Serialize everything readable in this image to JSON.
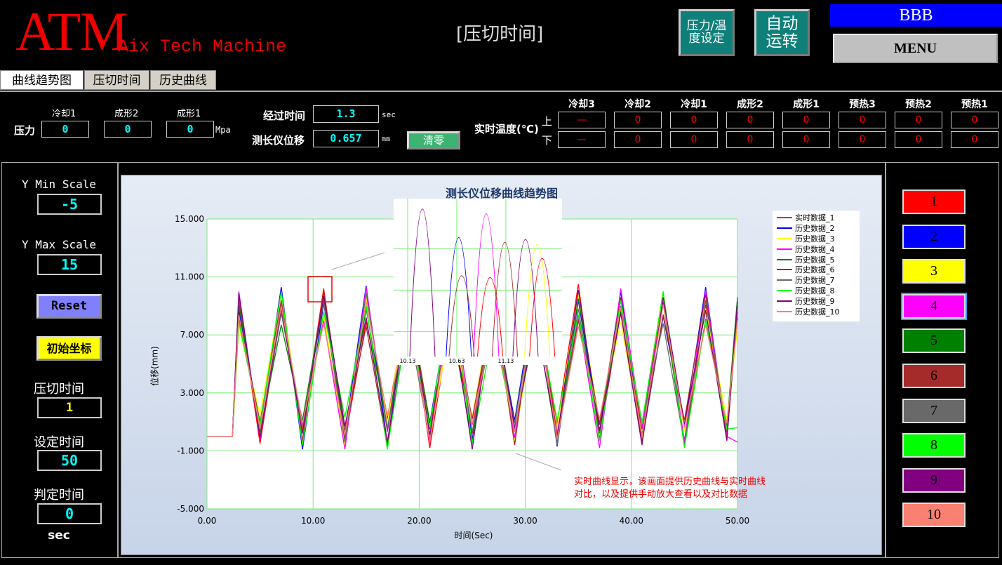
{
  "header": {
    "logo": "ATM",
    "logo_sub": "Aix Tech Machine",
    "title": "[压切时间]",
    "btn_pressure_temp": "压力/温度设定",
    "btn_auto": "自动运转",
    "user": "BBB",
    "menu": "MENU"
  },
  "tabs": [
    {
      "label": "曲线趋势图",
      "active": true
    },
    {
      "label": "压切时间",
      "active": false
    },
    {
      "label": "历史曲线",
      "active": false
    }
  ],
  "pressure": {
    "label": "压力",
    "unit": "Mpa",
    "fields": [
      {
        "label": "冷却1",
        "value": "0"
      },
      {
        "label": "成形2",
        "value": "0"
      },
      {
        "label": "成形1",
        "value": "0"
      }
    ]
  },
  "elapsed": {
    "label": "经过时间",
    "value": "1.3",
    "unit": "sec"
  },
  "displacement": {
    "label": "测长仪位移",
    "value": "0.657",
    "unit": "mm",
    "zero_btn": "清零"
  },
  "temperature": {
    "label": "实时温度(℃)",
    "upper": "上",
    "lower": "下",
    "columns": [
      "冷却3",
      "冷却2",
      "冷却1",
      "成形2",
      "成形1",
      "预热3",
      "预热2",
      "预热1"
    ],
    "upper_values": [
      "—",
      "0",
      "0",
      "0",
      "0",
      "0",
      "0",
      "0"
    ],
    "lower_values": [
      "—",
      "0",
      "0",
      "0",
      "0",
      "0",
      "0",
      "0"
    ]
  },
  "left_panel": {
    "ymin_label": "Y Min Scale",
    "ymin": "-5",
    "ymax_label": "Y Max Scale",
    "ymax": "15",
    "reset": "Reset",
    "init_coord": "初始坐标",
    "press_time_label": "压切时间",
    "press_time": "1",
    "set_time_label": "设定时间",
    "set_time": "50",
    "judge_time_label": "判定时间",
    "judge_time": "0",
    "unit": "sec"
  },
  "right_panel": {
    "buttons": [
      {
        "label": "1",
        "color": "#ff0000"
      },
      {
        "label": "2",
        "color": "#0000ff"
      },
      {
        "label": "3",
        "color": "#ffff00"
      },
      {
        "label": "4",
        "color": "#ff00ff",
        "selected": true
      },
      {
        "label": "5",
        "color": "#008000"
      },
      {
        "label": "6",
        "color": "#a52a2a"
      },
      {
        "label": "7",
        "color": "#696969"
      },
      {
        "label": "8",
        "color": "#00ff00"
      },
      {
        "label": "9",
        "color": "#800080"
      },
      {
        "label": "10",
        "color": "#fa8072"
      }
    ]
  },
  "annotation": "实时曲线显示，该画面提供历史曲线与实时曲线\n对比，以及提供手动放大查看以及对比数据",
  "chart_data": [
    {
      "type": "line",
      "title": "测长仪位移曲线趋势图",
      "xlabel": "时间(Sec)",
      "ylabel": "位移(mm)",
      "xlim": [
        0,
        50
      ],
      "ylim": [
        -5,
        15
      ],
      "grid": true,
      "legend": "top-right",
      "xticks": [
        "0.00",
        "10.00",
        "20.00",
        "30.00",
        "40.00",
        "50.00"
      ],
      "yticks": [
        "15.000",
        "11.000",
        "7.000",
        "3.000",
        "-1.000",
        "-5.000"
      ],
      "x": [
        0,
        2.4,
        3,
        5,
        7,
        9,
        11,
        13,
        15,
        17,
        19,
        21,
        23,
        25,
        27,
        29,
        31,
        33,
        35,
        37,
        39,
        41,
        43,
        45,
        47,
        49,
        50
      ],
      "series": [
        {
          "name": "实时数据_1",
          "color": "#ff0000",
          "values": [
            0,
            0,
            9.5,
            -0.5,
            8.8,
            0.4,
            10.2,
            -0.3,
            7.9,
            1.2,
            9.7,
            -0.8,
            8.4,
            0.2,
            10.1,
            -0.4,
            9.3,
            0.8,
            10.5,
            -0.2,
            8.7,
            0.5,
            9.9,
            -0.6,
            9.1,
            0.3,
            8.2
          ]
        },
        {
          "name": "历史数据_2",
          "color": "#0000ff",
          "values": [
            0,
            0,
            8.7,
            0.6,
            10.3,
            -0.9,
            9.2,
            0.1,
            10.4,
            -0.5,
            8.1,
            0.9,
            9.8,
            -0.2,
            8.9,
            1.1,
            10.2,
            -0.7,
            9.4,
            0.3,
            10.0,
            -0.4,
            8.3,
            0.7,
            10.3,
            -0.1,
            9.0
          ]
        },
        {
          "name": "历史数据_3",
          "color": "#ffff00",
          "values": [
            0,
            0,
            7.6,
            1.5,
            9.9,
            0.2,
            8.4,
            -0.6,
            9.6,
            0.9,
            10.1,
            0.0,
            7.8,
            1.3,
            9.5,
            -0.3,
            8.6,
            0.6,
            9.8,
            1.0,
            7.9,
            -0.2,
            9.7,
            0.4,
            8.8,
            1.2,
            7.4
          ]
        },
        {
          "name": "历史数据_4",
          "color": "#ff00ff",
          "values": [
            0,
            0,
            10.0,
            -0.2,
            9.1,
            0.7,
            8.0,
            -0.9,
            10.3,
            0.3,
            9.0,
            -0.5,
            10.4,
            0.8,
            8.5,
            -0.1,
            9.9,
            0.2,
            8.2,
            -0.8,
            10.2,
            0.6,
            9.3,
            -0.3,
            10.1,
            0.0,
            -0.4
          ]
        },
        {
          "name": "历史数据_5",
          "color": "#008000",
          "values": [
            0,
            0,
            9.1,
            0.3,
            7.7,
            1.1,
            9.6,
            -0.2,
            8.8,
            0.5,
            9.4,
            1.0,
            8.0,
            -0.4,
            9.7,
            0.6,
            8.3,
            -0.5,
            9.5,
            0.9,
            8.6,
            0.1,
            9.2,
            -0.7,
            8.1,
            0.7,
            9.6
          ]
        },
        {
          "name": "历史数据_6",
          "color": "#a52a2a",
          "values": [
            0,
            0,
            8.2,
            1.0,
            9.4,
            -0.3,
            10.0,
            0.4,
            7.6,
            -0.7,
            9.9,
            0.5,
            8.7,
            1.2,
            9.1,
            -0.6,
            10.3,
            0.0,
            8.0,
            0.8,
            9.6,
            -0.4,
            8.4,
            1.1,
            9.8,
            -0.2,
            8.6
          ]
        },
        {
          "name": "历史数据_7",
          "color": "#696969",
          "values": [
            0,
            0,
            9.7,
            0.0,
            8.5,
            0.8,
            9.3,
            -0.4,
            9.9,
            0.6,
            7.7,
            -0.2,
            9.4,
            0.3,
            8.1,
            0.9,
            9.6,
            -0.6,
            8.8,
            0.2,
            9.0,
            1.0,
            7.8,
            -0.5,
            9.4,
            0.4,
            8.9
          ]
        },
        {
          "name": "历史数据_8",
          "color": "#00ff00",
          "values": [
            0,
            0,
            7.9,
            0.8,
            10.0,
            -0.6,
            8.6,
            1.3,
            9.0,
            -0.9,
            8.3,
            0.6,
            10.2,
            -0.5,
            7.5,
            0.4,
            9.1,
            1.1,
            8.4,
            -0.3,
            9.4,
            0.9,
            10.0,
            -0.8,
            8.0,
            0.5,
            0.6
          ]
        },
        {
          "name": "历史数据_9",
          "color": "#800080",
          "values": [
            0,
            0,
            9.9,
            -0.1,
            8.9,
            0.2,
            9.7,
            0.7,
            8.2,
            -0.4,
            9.5,
            0.1,
            8.8,
            -0.9,
            9.8,
            0.5,
            7.9,
            -0.1,
            10.1,
            0.4,
            8.5,
            -0.6,
            9.6,
            0.8,
            8.7,
            -0.3,
            9.3
          ]
        },
        {
          "name": "历史数据_10",
          "color": "#fa8072",
          "values": [
            0,
            0,
            8.4,
            0.5,
            9.0,
            0.9,
            7.8,
            0.1,
            9.3,
            1.4,
            8.6,
            -0.4,
            9.2,
            0.9,
            8.0,
            0.3,
            9.4,
            -0.2,
            7.6,
            1.2,
            8.9,
            0.0,
            9.1,
            0.6,
            7.7,
            0.9,
            8.0
          ]
        }
      ]
    },
    {
      "type": "line",
      "title": "",
      "xticks": [
        "10.13",
        "10.63",
        "11.13"
      ],
      "peaks": [
        {
          "x": 10.28,
          "height": 15.5,
          "color": "#800080"
        },
        {
          "x": 10.65,
          "height": 12.5,
          "color": "#0000ff"
        },
        {
          "x": 10.68,
          "height": 8.5,
          "color": "#a52a2a"
        },
        {
          "x": 10.93,
          "height": 15.0,
          "color": "#ff00ff"
        },
        {
          "x": 10.97,
          "height": 8.3,
          "color": "#ff0000"
        },
        {
          "x": 11.12,
          "height": 12.0,
          "color": "#a52a2a"
        },
        {
          "x": 11.33,
          "height": 12.3,
          "color": "#800080"
        },
        {
          "x": 11.45,
          "height": 11.8,
          "color": "#ffff00"
        },
        {
          "x": 11.5,
          "height": 10.3,
          "color": "#ff0000"
        }
      ]
    }
  ]
}
